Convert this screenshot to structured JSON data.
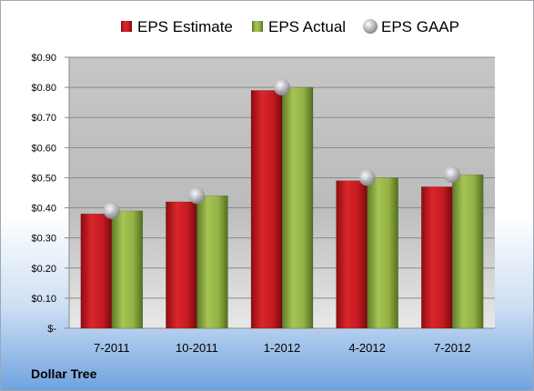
{
  "chart_data": {
    "type": "bar",
    "categories": [
      "7-2011",
      "10-2011",
      "1-2012",
      "4-2012",
      "7-2012"
    ],
    "series": [
      {
        "name": "EPS Estimate",
        "values": [
          0.38,
          0.42,
          0.79,
          0.49,
          0.47
        ],
        "color": "#c0151b"
      },
      {
        "name": "EPS Actual",
        "values": [
          0.39,
          0.44,
          0.8,
          0.5,
          0.51
        ],
        "color": "#8fb040"
      },
      {
        "name": "EPS GAAP",
        "values": [
          0.39,
          0.44,
          0.8,
          0.5,
          0.51
        ],
        "color": "#a8aaae",
        "marker": "sphere"
      }
    ],
    "ylim": [
      0,
      0.9
    ],
    "yticks": [
      "$-",
      "$0.10",
      "$0.20",
      "$0.30",
      "$0.40",
      "$0.50",
      "$0.60",
      "$0.70",
      "$0.80",
      "$0.90"
    ],
    "grid": true,
    "legend_position": "top"
  },
  "footer": {
    "company": "Dollar Tree"
  }
}
